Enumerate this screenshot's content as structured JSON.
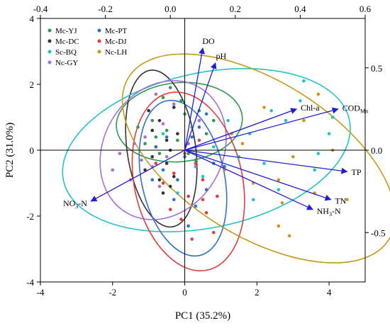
{
  "chart_data": {
    "type": "scatter",
    "title": "",
    "xlabel": "PC1 (35.2%)",
    "ylabel": "PC2 (31.0%)",
    "xlim": [
      -4,
      5
    ],
    "ylim": [
      -4,
      4
    ],
    "x_ticks": [
      -4,
      -2,
      0,
      2,
      4
    ],
    "y_ticks": [
      -4,
      -2,
      0,
      2,
      4
    ],
    "top_axis": {
      "lim": [
        -0.4,
        0.6
      ],
      "ticks": [
        "-0.4",
        "-0.2",
        "0.0",
        "0.2",
        "0.4",
        "0.6"
      ]
    },
    "right_axis": {
      "lim": [
        -0.8,
        0.8
      ],
      "ticks": [
        "-0.5",
        "0.0",
        "0.5"
      ]
    },
    "zero_lines": true,
    "grid": false,
    "legend_position": "top-left",
    "series": [
      {
        "name": "Mc-YJ",
        "color": "#2e9a4e",
        "points": [
          [
            -0.6,
            1.6
          ],
          [
            -0.3,
            1.3
          ],
          [
            -0.9,
            0.9
          ],
          [
            0.0,
            1.1
          ],
          [
            -0.5,
            0.6
          ],
          [
            -0.8,
            0.4
          ],
          [
            0.2,
            0.7
          ],
          [
            -0.4,
            1.9
          ],
          [
            0.4,
            1.2
          ],
          [
            -1.1,
            0.2
          ],
          [
            -0.2,
            0.3
          ],
          [
            0.6,
            0.5
          ],
          [
            -0.7,
            -0.1
          ],
          [
            0.3,
            -0.3
          ],
          [
            -0.1,
            1.5
          ],
          [
            0.8,
            0.9
          ],
          [
            -1.3,
            0.7
          ],
          [
            0.1,
            -0.1
          ]
        ],
        "ellipse": {
          "center": [
            -0.15,
            0.85
          ],
          "semi_axes": [
            1.75,
            1.2
          ],
          "angle_deg": 5
        }
      },
      {
        "name": "Mc-DC",
        "color": "#333333",
        "points": [
          [
            -0.5,
            0.3
          ],
          [
            -0.9,
            -0.2
          ],
          [
            -0.3,
            -0.8
          ],
          [
            -0.7,
            0.9
          ],
          [
            -1.1,
            -0.6
          ],
          [
            -0.4,
            0.0
          ],
          [
            -0.6,
            -1.3
          ],
          [
            -0.2,
            0.5
          ],
          [
            -0.8,
            0.1
          ],
          [
            -1.0,
            1.2
          ],
          [
            -0.5,
            -0.4
          ],
          [
            -0.3,
            1.3
          ],
          [
            -0.7,
            -0.9
          ],
          [
            -0.9,
            0.6
          ],
          [
            -0.4,
            -1.1
          ]
        ],
        "ellipse": {
          "center": [
            -0.65,
            0.05
          ],
          "semi_axes": [
            0.95,
            2.4
          ],
          "angle_deg": 8
        }
      },
      {
        "name": "Sc-BQ",
        "color": "#22c3c8",
        "points": [
          [
            3.2,
            1.5
          ],
          [
            2.8,
            0.9
          ],
          [
            4.0,
            0.5
          ],
          [
            3.6,
            -0.6
          ],
          [
            2.2,
            -0.4
          ],
          [
            2.6,
            -1.2
          ],
          [
            3.3,
            2.1
          ],
          [
            1.8,
            0.5
          ],
          [
            2.4,
            1.2
          ],
          [
            4.1,
            1.0
          ],
          [
            1.5,
            -0.2
          ],
          [
            0.8,
            0.1
          ],
          [
            -0.2,
            -1.3
          ],
          [
            1.9,
            -1.5
          ],
          [
            3.7,
            -0.1
          ],
          [
            -0.6,
            0.5
          ],
          [
            0.5,
            -0.8
          ],
          [
            1.2,
            0.9
          ]
        ],
        "ellipse": {
          "center": [
            0.6,
            0.0
          ],
          "semi_axes": [
            4.05,
            2.35
          ],
          "angle_deg": 12
        }
      },
      {
        "name": "Nc-GY",
        "color": "#a56fd8",
        "points": [
          [
            -1.2,
            -0.3
          ],
          [
            -0.6,
            0.8
          ],
          [
            -1.5,
            -0.9
          ],
          [
            0.1,
            0.2
          ],
          [
            -0.9,
            -0.5
          ],
          [
            -1.8,
            -0.1
          ],
          [
            -0.3,
            1.4
          ],
          [
            -1.1,
            0.4
          ],
          [
            0.3,
            -0.5
          ],
          [
            -0.7,
            -1.1
          ],
          [
            -1.4,
            0.2
          ],
          [
            -0.5,
            -0.2
          ],
          [
            -2.0,
            -0.6
          ],
          [
            0.4,
            0.9
          ],
          [
            -0.8,
            1.7
          ]
        ],
        "ellipse": {
          "center": [
            -0.6,
            0.0
          ],
          "semi_axes": [
            1.65,
            2.2
          ],
          "angle_deg": -30
        }
      },
      {
        "name": "Mc-PT",
        "color": "#2f6fd4",
        "points": [
          [
            -0.2,
            -0.9
          ],
          [
            0.3,
            -1.7
          ],
          [
            -0.6,
            -0.6
          ],
          [
            0.8,
            -0.4
          ],
          [
            0.1,
            -2.3
          ],
          [
            -0.9,
            -0.9
          ],
          [
            0.6,
            -1.2
          ],
          [
            -0.3,
            -1.5
          ],
          [
            0.4,
            0.7
          ],
          [
            1.1,
            -0.5
          ],
          [
            -0.5,
            0.4
          ],
          [
            0.0,
            -0.2
          ],
          [
            0.2,
            0.4
          ],
          [
            -0.8,
            0.1
          ],
          [
            0.6,
            1.1
          ]
        ],
        "ellipse": {
          "center": [
            -0.05,
            -0.85
          ],
          "semi_axes": [
            1.15,
            2.4
          ],
          "angle_deg": 12
        }
      },
      {
        "name": "Mc-DJ",
        "color": "#e03c3c",
        "points": [
          [
            0.1,
            -1.4
          ],
          [
            0.6,
            -1.9
          ],
          [
            -0.3,
            -0.7
          ],
          [
            0.5,
            -0.9
          ],
          [
            -0.1,
            -2.1
          ],
          [
            0.9,
            -1.4
          ],
          [
            0.3,
            -0.4
          ],
          [
            -0.6,
            -1.0
          ],
          [
            0.8,
            -2.5
          ],
          [
            0.0,
            -0.1
          ],
          [
            0.5,
            -1.5
          ],
          [
            -0.4,
            -1.8
          ],
          [
            0.2,
            -2.7
          ],
          [
            -0.8,
            -0.4
          ],
          [
            0.4,
            0.3
          ]
        ],
        "ellipse": {
          "center": [
            0.1,
            -0.95
          ],
          "semi_axes": [
            1.5,
            2.75
          ],
          "angle_deg": 12
        }
      },
      {
        "name": "Nc-LH",
        "color": "#c99718",
        "points": [
          [
            4.5,
            -1.5
          ],
          [
            3.0,
            -0.2
          ],
          [
            2.6,
            -0.9
          ],
          [
            2.7,
            -1.6
          ],
          [
            2.6,
            -2.3
          ],
          [
            2.9,
            -2.6
          ],
          [
            3.6,
            -1.3
          ],
          [
            1.9,
            -1.0
          ],
          [
            1.6,
            0.2
          ],
          [
            3.3,
            0.9
          ],
          [
            4.1,
            0.0
          ],
          [
            2.2,
            1.3
          ],
          [
            1.3,
            0.5
          ],
          [
            3.7,
            1.7
          ],
          [
            1.1,
            -0.6
          ]
        ],
        "ellipse": {
          "center": [
            2.05,
            -0.25
          ],
          "semi_axes": [
            4.25,
            2.35
          ],
          "angle_deg": -32
        }
      }
    ],
    "loadings": [
      {
        "name": "DO",
        "x": 0.5,
        "y": 3.1,
        "label": "DO",
        "sub": ""
      },
      {
        "name": "pH",
        "x": 0.85,
        "y": 2.65,
        "label": "pH",
        "sub": ""
      },
      {
        "name": "Chl-a",
        "x": 3.1,
        "y": 1.25,
        "label": "Chl-a",
        "sub": ""
      },
      {
        "name": "COD_Mn",
        "x": 4.25,
        "y": 1.25,
        "label": "COD",
        "sub": "Mn"
      },
      {
        "name": "TP",
        "x": 4.5,
        "y": -0.65,
        "label": "TP",
        "sub": ""
      },
      {
        "name": "TN",
        "x": 4.05,
        "y": -1.5,
        "label": "TN",
        "sub": ""
      },
      {
        "name": "NH3-N",
        "x": 3.55,
        "y": -1.8,
        "label": "NH",
        "sub": "3",
        "label_after": "-N"
      },
      {
        "name": "NO3-N",
        "x": -2.6,
        "y": -1.55,
        "label": "NO",
        "sub": "3",
        "label_after": "-N"
      }
    ],
    "loading_color": "#1f1fd8"
  }
}
